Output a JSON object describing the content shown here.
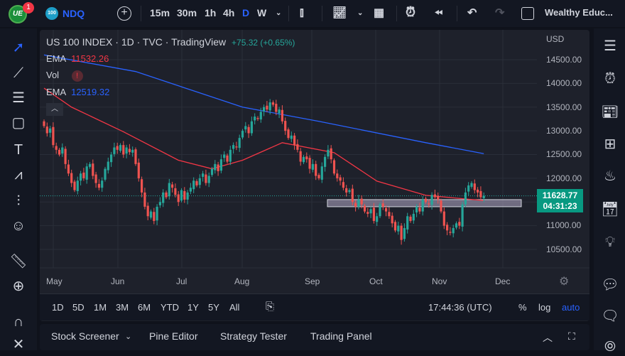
{
  "topbar": {
    "notification_count": "1",
    "symbol_badge": "100",
    "symbol": "NDQ",
    "intervals": [
      "15m",
      "30m",
      "1h",
      "4h",
      "D",
      "W"
    ],
    "active_interval": "D",
    "layout_name": "Wealthy Educ..."
  },
  "legend": {
    "title": "US 100 INDEX · 1D · TVC · TradingView",
    "change": "+75.32 (+0.65%)",
    "ema1_label": "EMA",
    "ema1_value": "11532.26",
    "vol_label": "Vol",
    "vol_warning": "!",
    "ema2_label": "EMA",
    "ema2_value": "12519.32"
  },
  "price_axis": {
    "currency": "USD",
    "ticks": [
      "14500.00",
      "14000.00",
      "13500.00",
      "13000.00",
      "12500.00",
      "12000.00",
      "11000.00",
      "10500.00"
    ],
    "last_price": "11628.77",
    "countdown": "04:31:23"
  },
  "date_axis": {
    "ticks": [
      "May",
      "Jun",
      "Jul",
      "Aug",
      "Sep",
      "Oct",
      "Nov",
      "Dec"
    ]
  },
  "timeframes": [
    "1D",
    "5D",
    "1M",
    "3M",
    "6M",
    "YTD",
    "1Y",
    "5Y",
    "All"
  ],
  "clock": "17:44:36 (UTC)",
  "scale_options": {
    "percent": "%",
    "log": "log",
    "auto": "auto"
  },
  "bottom_tabs": [
    "Stock Screener",
    "Pine Editor",
    "Strategy Tester",
    "Trading Panel"
  ],
  "colors": {
    "up": "#26a69a",
    "down": "#ef5350",
    "ema_fast": "#f23645",
    "ema_slow": "#2962ff",
    "accent": "#2962ff",
    "zone": "#b2a9c6"
  },
  "chart_data": {
    "type": "candlestick",
    "ylim": [
      10300,
      14800
    ],
    "closes": [
      13100,
      12950,
      13050,
      12700,
      12600,
      12500,
      12650,
      12300,
      12100,
      11900,
      11750,
      11950,
      12100,
      12000,
      12250,
      12300,
      12050,
      11900,
      11800,
      11950,
      12200,
      12350,
      12500,
      12650,
      12600,
      12700,
      12500,
      12650,
      12550,
      12600,
      12300,
      12000,
      11700,
      11400,
      11200,
      11300,
      11100,
      11400,
      11500,
      11700,
      11600,
      11900,
      11800,
      11650,
      11500,
      11750,
      11550,
      11700,
      11800,
      11950,
      11850,
      12000,
      12100,
      11900,
      12050,
      12200,
      12300,
      12150,
      12400,
      12500,
      12350,
      12600,
      12700,
      12650,
      12850,
      13000,
      13100,
      12950,
      13200,
      13300,
      13250,
      13400,
      13500,
      13450,
      13600,
      13550,
      13400,
      13450,
      13200,
      13000,
      12850,
      12900,
      12700,
      12600,
      12350,
      12450,
      12400,
      12200,
      12300,
      12050,
      12000,
      12250,
      12450,
      12600,
      12400,
      12100,
      12000,
      11950,
      11800,
      11700,
      11750,
      11500,
      11400,
      11550,
      11450,
      11300,
      11250,
      11350,
      11100,
      11200,
      11450,
      11400,
      11300,
      11200,
      11050,
      10900,
      11000,
      10700,
      10950,
      11200,
      11100,
      11250,
      11400,
      11300,
      11550,
      11500,
      11450,
      11650,
      11600,
      11550,
      11300,
      11000,
      10900,
      10850,
      10950,
      11050,
      11000,
      11450,
      11700,
      11850,
      11900,
      11750,
      11700,
      11600,
      11630
    ],
    "ema_fast": {
      "name": "EMA",
      "points": [
        [
          0,
          13900
        ],
        [
          9,
          13500
        ],
        [
          26,
          12980
        ],
        [
          44,
          12380
        ],
        [
          55,
          12200
        ],
        [
          65,
          12380
        ],
        [
          78,
          12750
        ],
        [
          95,
          12540
        ],
        [
          109,
          11940
        ],
        [
          125,
          11640
        ],
        [
          144,
          11530
        ]
      ]
    },
    "ema_slow": {
      "name": "EMA",
      "points": [
        [
          0,
          14600
        ],
        [
          30,
          14250
        ],
        [
          65,
          13500
        ],
        [
          90,
          13200
        ],
        [
          125,
          12750
        ],
        [
          144,
          12519
        ]
      ]
    },
    "zone": [
      11400,
      11550
    ],
    "last_price": 11628.77
  }
}
